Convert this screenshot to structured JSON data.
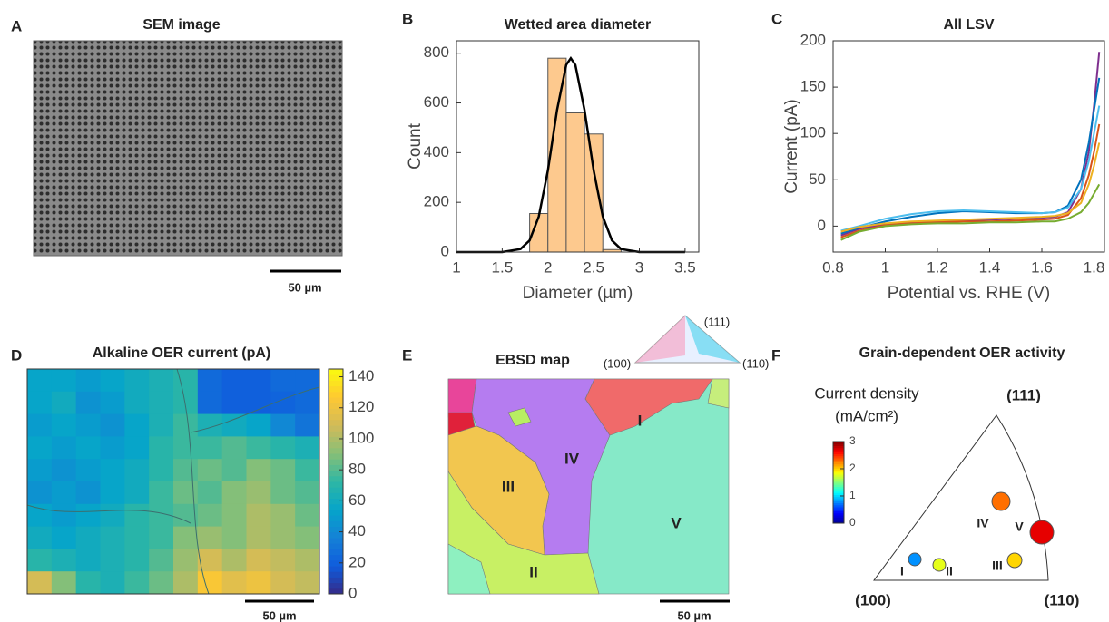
{
  "figure": {
    "panel_letters": [
      "A",
      "B",
      "C",
      "D",
      "E",
      "F"
    ]
  },
  "sem_image": {
    "title": "SEM image",
    "scale_bar": "50 µm"
  },
  "ebsd_map": {
    "title": "EBSD map",
    "scale_bar": "50 µm",
    "legend_corners": [
      "(111)",
      "(100)",
      "(110)"
    ],
    "grain_labels": [
      "I",
      "II",
      "III",
      "IV",
      "V"
    ]
  },
  "chart_data": [
    {
      "type": "histogram",
      "title": "Wetted area diameter",
      "x_label": "Diameter (µm)",
      "y_label": "Count",
      "bins": [
        1.8,
        2.0,
        2.2,
        2.4,
        2.6,
        2.8
      ],
      "values": [
        155,
        780,
        560,
        475,
        10
      ],
      "color": "#fdc98e",
      "fit": {
        "x": [
          1.0,
          1.5,
          1.7,
          1.8,
          1.9,
          2.0,
          2.1,
          2.2,
          2.25,
          2.3,
          2.4,
          2.5,
          2.6,
          2.7,
          2.8,
          3.0,
          3.5
        ],
        "values": [
          0,
          0,
          12,
          47,
          143,
          329,
          572,
          753,
          780,
          753,
          572,
          329,
          143,
          47,
          12,
          0,
          0
        ],
        "color": "#000000"
      },
      "xlim": [
        1,
        3.65
      ],
      "xticks": [
        1,
        1.5,
        2,
        2.5,
        3,
        3.5
      ],
      "ylim": [
        0,
        850
      ],
      "yticks": [
        0,
        200,
        400,
        600,
        800
      ]
    },
    {
      "type": "line",
      "title": "All LSV",
      "x_label": "Potential vs. RHE (V)",
      "y_label": "Current (pA)",
      "x": [
        0.83,
        0.9,
        1.0,
        1.1,
        1.2,
        1.3,
        1.4,
        1.5,
        1.6,
        1.65,
        1.7,
        1.75,
        1.78,
        1.8,
        1.82
      ],
      "series": [
        {
          "color": "#7e2f8e",
          "values": [
            -10,
            -3,
            2,
            4,
            5,
            6,
            7,
            8,
            9,
            10,
            15,
            40,
            80,
            130,
            188
          ]
        },
        {
          "color": "#0072bd",
          "values": [
            -8,
            -2,
            5,
            10,
            14,
            16,
            15,
            14,
            14,
            15,
            22,
            50,
            90,
            125,
            160
          ]
        },
        {
          "color": "#4dbeee",
          "values": [
            -5,
            0,
            8,
            13,
            16,
            17,
            16,
            15,
            14,
            15,
            20,
            40,
            70,
            100,
            130
          ]
        },
        {
          "color": "#d95319",
          "values": [
            -12,
            -5,
            1,
            3,
            4,
            5,
            5,
            6,
            7,
            8,
            12,
            30,
            55,
            80,
            110
          ]
        },
        {
          "color": "#edb120",
          "values": [
            -6,
            -1,
            3,
            5,
            6,
            7,
            8,
            9,
            10,
            11,
            14,
            25,
            45,
            65,
            90
          ]
        },
        {
          "color": "#77ac30",
          "values": [
            -15,
            -6,
            0,
            2,
            3,
            3,
            4,
            4,
            5,
            5,
            8,
            15,
            25,
            35,
            45
          ]
        }
      ],
      "xlim": [
        0.8,
        1.84
      ],
      "xticks": [
        0.8,
        1,
        1.2,
        1.4,
        1.6,
        1.8
      ],
      "ylim": [
        -28,
        200
      ],
      "yticks": [
        0,
        50,
        100,
        150,
        200
      ]
    },
    {
      "type": "heatmap",
      "title": "Alkaline OER current (pA)",
      "scale_bar": "50 µm",
      "colormap": "parula",
      "values": [
        [
          55,
          55,
          50,
          55,
          60,
          65,
          70,
          25,
          20,
          20,
          25,
          25
        ],
        [
          55,
          60,
          45,
          50,
          60,
          65,
          70,
          25,
          20,
          20,
          22,
          25
        ],
        [
          50,
          55,
          50,
          45,
          55,
          65,
          75,
          65,
          60,
          55,
          40,
          30
        ],
        [
          55,
          50,
          55,
          50,
          55,
          70,
          75,
          75,
          80,
          75,
          70,
          65
        ],
        [
          50,
          45,
          50,
          55,
          60,
          70,
          80,
          85,
          80,
          90,
          85,
          75
        ],
        [
          45,
          50,
          45,
          55,
          60,
          75,
          85,
          80,
          90,
          95,
          85,
          80
        ],
        [
          55,
          50,
          55,
          60,
          70,
          75,
          80,
          85,
          90,
          100,
          95,
          85
        ],
        [
          60,
          55,
          60,
          65,
          70,
          75,
          90,
          95,
          90,
          100,
          95,
          90
        ],
        [
          70,
          65,
          60,
          65,
          70,
          80,
          95,
          110,
          100,
          110,
          105,
          100
        ],
        [
          110,
          90,
          70,
          65,
          75,
          85,
          100,
          125,
          115,
          120,
          110,
          105
        ]
      ],
      "clim": [
        0,
        145
      ],
      "cticks": [
        0,
        20,
        40,
        60,
        80,
        100,
        120,
        140
      ]
    },
    {
      "type": "scatter",
      "title": "Grain-dependent OER activity",
      "color_label": "Current density",
      "color_unit": "(mA/cm²)",
      "colormap": "jet",
      "categories": [
        "I",
        "II",
        "III",
        "IV",
        "V"
      ],
      "values": [
        0.8,
        1.8,
        2.0,
        2.3,
        2.7
      ],
      "corner_labels": [
        "(111)",
        "(100)",
        "(110)"
      ],
      "clim": [
        0,
        3
      ],
      "cticks": [
        0,
        1,
        2,
        3
      ]
    }
  ]
}
